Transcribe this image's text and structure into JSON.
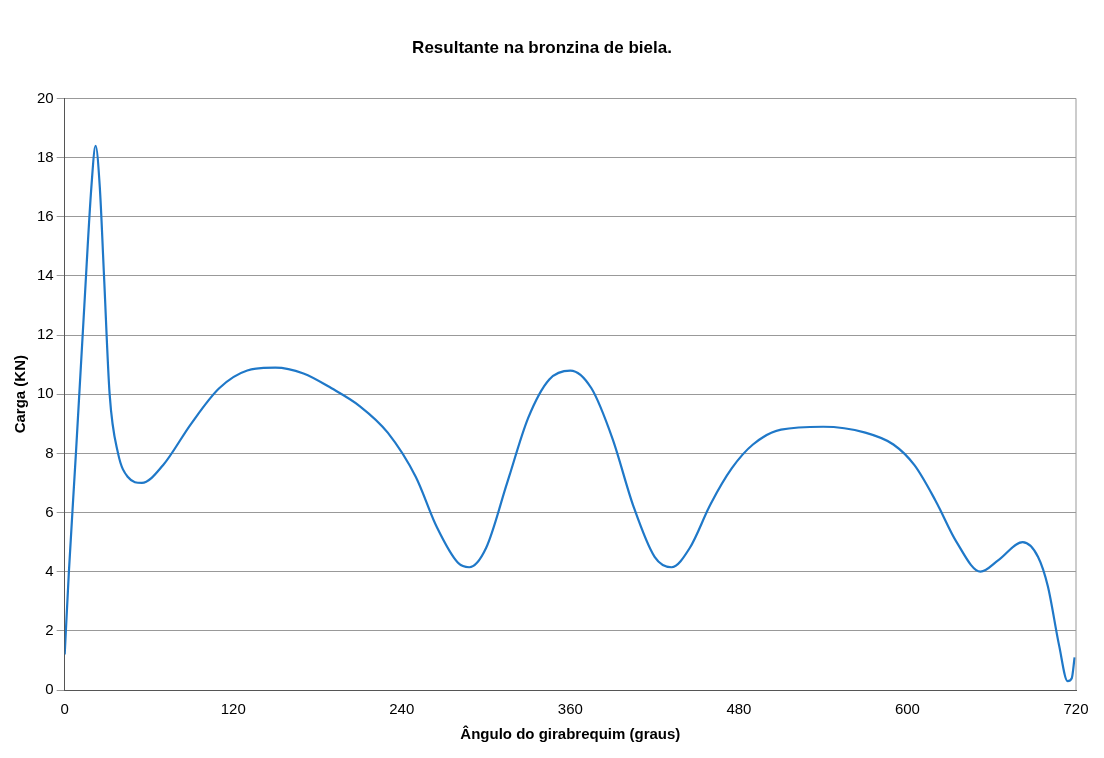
{
  "chart_data": {
    "type": "line",
    "title": "Resultante na bronzina de biela.",
    "xlabel": "Ângulo do girabrequim (graus)",
    "ylabel": "Carga (KN)",
    "x": [
      0,
      3,
      8,
      14,
      19,
      22,
      25,
      28,
      32,
      38,
      45,
      55,
      70,
      90,
      110,
      130,
      150,
      170,
      190,
      210,
      230,
      250,
      265,
      280,
      288,
      300,
      315,
      330,
      345,
      360,
      375,
      390,
      405,
      420,
      432,
      445,
      460,
      475,
      490,
      510,
      540,
      570,
      590,
      605,
      620,
      635,
      652,
      665,
      682,
      693,
      700,
      708,
      714,
      717,
      719
    ],
    "series": [
      {
        "color": "#1f78c8",
        "values": [
          1.2,
          4,
          8,
          13,
          17,
          18.4,
          17,
          14,
          10,
          8,
          7.2,
          7.0,
          7.6,
          9.0,
          10.2,
          10.8,
          10.9,
          10.7,
          10.2,
          9.6,
          8.7,
          7.2,
          5.5,
          4.3,
          4.15,
          4.8,
          7,
          9.2,
          10.5,
          10.8,
          10.2,
          8.5,
          6.2,
          4.5,
          4.15,
          4.8,
          6.3,
          7.5,
          8.3,
          8.8,
          8.9,
          8.7,
          8.3,
          7.6,
          6.4,
          5.0,
          4.0,
          4.4,
          5.0,
          4.5,
          3.5,
          1.5,
          0.3,
          0.4,
          1.1
        ]
      }
    ],
    "xlim": [
      0,
      720
    ],
    "xticks": [
      0,
      120,
      240,
      360,
      480,
      600,
      720
    ],
    "ylim": [
      0,
      20
    ],
    "yticks": [
      0,
      2,
      4,
      6,
      8,
      10,
      12,
      14,
      16,
      18,
      20
    ],
    "grid": "y",
    "legend": false,
    "marker": "none",
    "line_style": "solid"
  }
}
